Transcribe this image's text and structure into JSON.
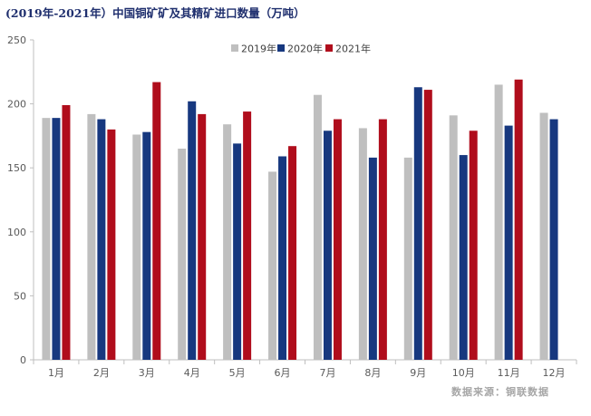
{
  "chart_data": {
    "type": "bar",
    "title": "(2019年-2021年）中国铜矿矿及其精矿进口数量（万吨）",
    "xlabel": "",
    "ylabel": "",
    "ylim": [
      0,
      250
    ],
    "yticks": [
      0,
      50,
      100,
      150,
      200,
      250
    ],
    "categories": [
      "1月",
      "2月",
      "3月",
      "4月",
      "5月",
      "6月",
      "7月",
      "8月",
      "9月",
      "10月",
      "11月",
      "12月"
    ],
    "series": [
      {
        "name": "2019年",
        "color": "#bfbfbf",
        "values": [
          189,
          192,
          176,
          165,
          184,
          147,
          207,
          181,
          158,
          191,
          215,
          193
        ]
      },
      {
        "name": "2020年",
        "color": "#17387f",
        "values": [
          189,
          188,
          178,
          202,
          169,
          159,
          179,
          158,
          213,
          160,
          183,
          188
        ]
      },
      {
        "name": "2021年",
        "color": "#b00d1c",
        "values": [
          199,
          180,
          217,
          192,
          194,
          167,
          188,
          188,
          211,
          179,
          219,
          null
        ]
      }
    ],
    "legend_position": "top-center",
    "grid": false,
    "source": "数据来源：铜联数据"
  }
}
